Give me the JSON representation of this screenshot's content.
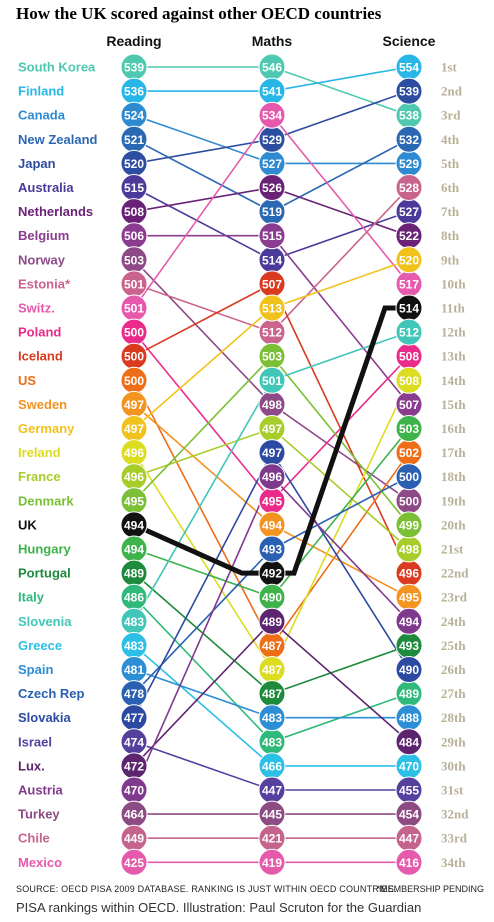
{
  "title": "How the UK scored against other OECD countries",
  "footer": {
    "source": "SOURCE: OECD PISA 2009 DATABASE. RANKING IS JUST WITHIN OECD COUNTRIES.",
    "pending": "*MEMBERSHIP PENDING",
    "caption": "PISA rankings within OECD. Illustration: Paul Scruton for the Guardian"
  },
  "chart_data": {
    "type": "slope",
    "subjects": [
      "Reading",
      "Maths",
      "Science"
    ],
    "ranks": [
      "1st",
      "2nd",
      "3rd",
      "4th",
      "5th",
      "6th",
      "7th",
      "8th",
      "9th",
      "10th",
      "11th",
      "12th",
      "13th",
      "14th",
      "15th",
      "16th",
      "17th",
      "18th",
      "19th",
      "20th",
      "21st",
      "22nd",
      "23rd",
      "24th",
      "25th",
      "26th",
      "27th",
      "28th",
      "29th",
      "30th",
      "31st",
      "32nd",
      "33rd",
      "34th"
    ],
    "highlight": "UK",
    "countries": [
      {
        "name": "South Korea",
        "color": "#4ec9b0",
        "scores": [
          539,
          546,
          538
        ],
        "ranks": [
          1,
          1,
          3
        ]
      },
      {
        "name": "Finland",
        "color": "#27b6e6",
        "scores": [
          536,
          541,
          554
        ],
        "ranks": [
          2,
          2,
          1
        ]
      },
      {
        "name": "Canada",
        "color": "#2e8bd2",
        "scores": [
          524,
          527,
          529
        ],
        "ranks": [
          3,
          5,
          5
        ]
      },
      {
        "name": "New Zealand",
        "color": "#2b68b4",
        "scores": [
          521,
          519,
          532
        ],
        "ranks": [
          4,
          7,
          4
        ]
      },
      {
        "name": "Japan",
        "color": "#2d4da0",
        "scores": [
          520,
          529,
          539
        ],
        "ranks": [
          5,
          4,
          2
        ]
      },
      {
        "name": "Australia",
        "color": "#4c3a9a",
        "scores": [
          515,
          514,
          527
        ],
        "ranks": [
          6,
          9,
          7
        ]
      },
      {
        "name": "Netherlands",
        "color": "#6a2277",
        "scores": [
          508,
          526,
          522
        ],
        "ranks": [
          7,
          6,
          8
        ]
      },
      {
        "name": "Belgium",
        "color": "#8a3c8f",
        "scores": [
          506,
          515,
          507
        ],
        "ranks": [
          8,
          8,
          15
        ]
      },
      {
        "name": "Norway",
        "color": "#8d4a86",
        "scores": [
          503,
          498,
          500
        ],
        "ranks": [
          9,
          15,
          19
        ]
      },
      {
        "name": "Estonia*",
        "color": "#c9648c",
        "scores": [
          501,
          512,
          528
        ],
        "ranks": [
          10,
          12,
          6
        ]
      },
      {
        "name": "Switz.",
        "color": "#e65aae",
        "scores": [
          501,
          534,
          517
        ],
        "ranks": [
          11,
          3,
          10
        ]
      },
      {
        "name": "Poland",
        "color": "#ea2b8c",
        "scores": [
          500,
          495,
          508
        ],
        "ranks": [
          12,
          19,
          13
        ]
      },
      {
        "name": "Iceland",
        "color": "#d93a20",
        "scores": [
          500,
          507,
          496
        ],
        "ranks": [
          13,
          10,
          22
        ]
      },
      {
        "name": "US",
        "color": "#ee6e18",
        "scores": [
          500,
          487,
          502
        ],
        "ranks": [
          14,
          25,
          17
        ]
      },
      {
        "name": "Sweden",
        "color": "#f39420",
        "scores": [
          497,
          494,
          495
        ],
        "ranks": [
          15,
          20,
          23
        ]
      },
      {
        "name": "Germany",
        "color": "#f2c21c",
        "scores": [
          497,
          513,
          520
        ],
        "ranks": [
          16,
          11,
          9
        ]
      },
      {
        "name": "Ireland",
        "color": "#dcdc20",
        "scores": [
          496,
          487,
          508
        ],
        "ranks": [
          17,
          26,
          14
        ]
      },
      {
        "name": "France",
        "color": "#a7cd2a",
        "scores": [
          496,
          497,
          498
        ],
        "ranks": [
          18,
          16,
          21
        ]
      },
      {
        "name": "Denmark",
        "color": "#7bbf36",
        "scores": [
          495,
          503,
          499
        ],
        "ranks": [
          19,
          13,
          20
        ]
      },
      {
        "name": "UK",
        "color": "#111111",
        "scores": [
          494,
          492,
          514
        ],
        "ranks": [
          20,
          22,
          11
        ]
      },
      {
        "name": "Hungary",
        "color": "#3db34a",
        "scores": [
          494,
          490,
          503
        ],
        "ranks": [
          21,
          23,
          16
        ]
      },
      {
        "name": "Portugal",
        "color": "#1e8a3c",
        "scores": [
          489,
          487,
          493
        ],
        "ranks": [
          22,
          27,
          25
        ]
      },
      {
        "name": "Italy",
        "color": "#2fba7b",
        "scores": [
          486,
          483,
          489
        ],
        "ranks": [
          23,
          29,
          27
        ]
      },
      {
        "name": "Slovenia",
        "color": "#42c6b8",
        "scores": [
          483,
          501,
          512
        ],
        "ranks": [
          24,
          14,
          12
        ]
      },
      {
        "name": "Greece",
        "color": "#2cc0e6",
        "scores": [
          483,
          466,
          470
        ],
        "ranks": [
          25,
          30,
          30
        ]
      },
      {
        "name": "Spain",
        "color": "#2c8ed4",
        "scores": [
          481,
          483,
          488
        ],
        "ranks": [
          26,
          28,
          28
        ]
      },
      {
        "name": "Czech Rep",
        "color": "#2a60b2",
        "scores": [
          478,
          493,
          500
        ],
        "ranks": [
          27,
          21,
          18
        ]
      },
      {
        "name": "Slovakia",
        "color": "#2d4aa2",
        "scores": [
          477,
          497,
          490
        ],
        "ranks": [
          28,
          17,
          26
        ]
      },
      {
        "name": "Israel",
        "color": "#55409e",
        "scores": [
          474,
          447,
          455
        ],
        "ranks": [
          29,
          31,
          31
        ]
      },
      {
        "name": "Lux.",
        "color": "#5d2470",
        "scores": [
          472,
          489,
          484
        ],
        "ranks": [
          30,
          24,
          29
        ]
      },
      {
        "name": "Austria",
        "color": "#7f3a8e",
        "scores": [
          470,
          496,
          494
        ],
        "ranks": [
          31,
          18,
          24
        ]
      },
      {
        "name": "Turkey",
        "color": "#8c4b83",
        "scores": [
          464,
          445,
          454
        ],
        "ranks": [
          32,
          32,
          32
        ]
      },
      {
        "name": "Chile",
        "color": "#c4648c",
        "scores": [
          449,
          421,
          447
        ],
        "ranks": [
          33,
          33,
          33
        ]
      },
      {
        "name": "Mexico",
        "color": "#e65aac",
        "scores": [
          425,
          419,
          416
        ],
        "ranks": [
          34,
          34,
          34
        ]
      }
    ]
  }
}
